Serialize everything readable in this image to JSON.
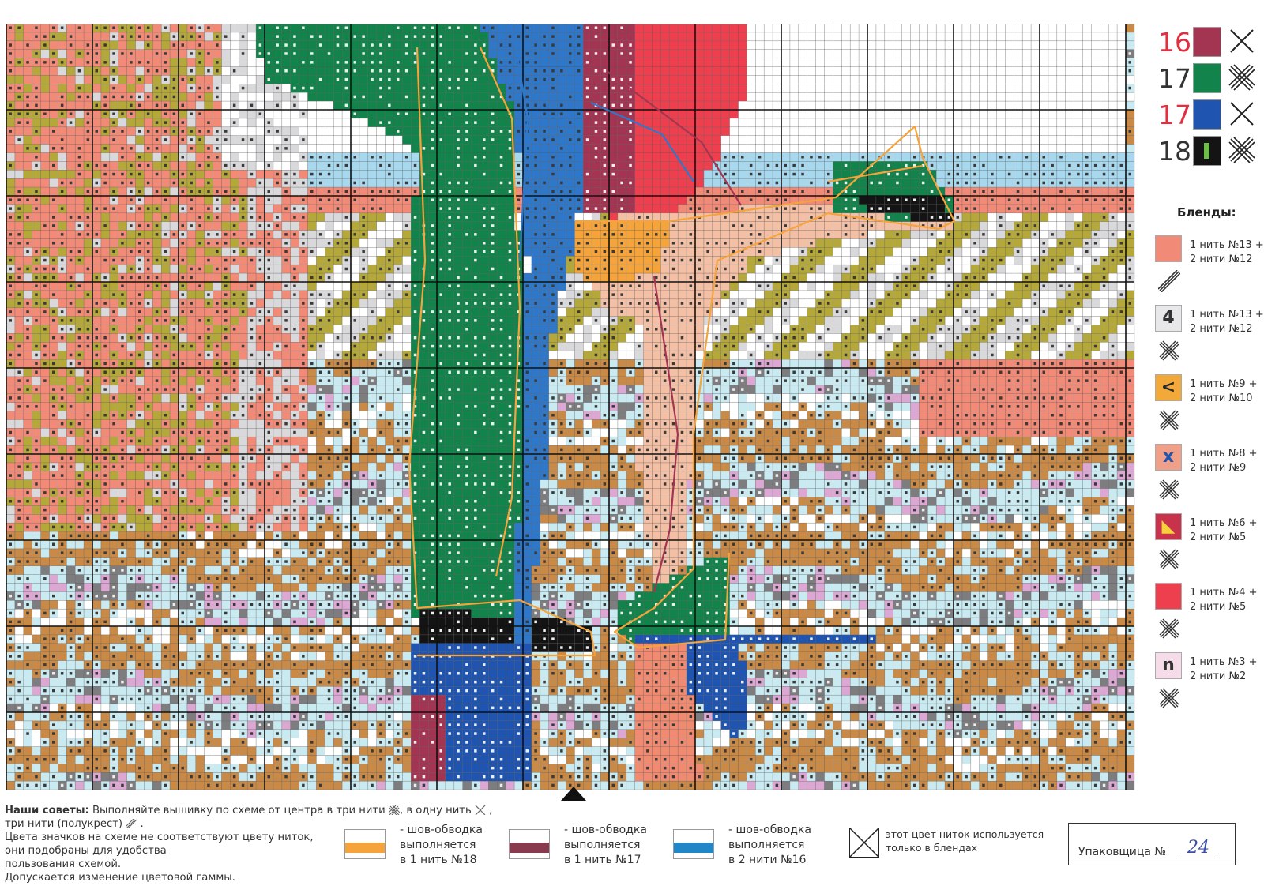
{
  "legend": {
    "items": [
      {
        "number": "16",
        "number_color": "#e03040",
        "swatch": "#a33552",
        "stitch": "x-single",
        "swatch_mark": ""
      },
      {
        "number": "17",
        "number_color": "#333333",
        "swatch": "#12834a",
        "stitch": "x-triple",
        "swatch_mark": ""
      },
      {
        "number": "17",
        "number_color": "#e03040",
        "swatch": "#1f55b0",
        "stitch": "x-single",
        "swatch_mark": ""
      },
      {
        "number": "18",
        "number_color": "#333333",
        "swatch": "#141414",
        "stitch": "x-triple",
        "swatch_mark": "green-bar"
      }
    ]
  },
  "blends": {
    "title": "Бленды:",
    "items": [
      {
        "swatch": "#f28a78",
        "symbol": "",
        "symbol_color": "#333333",
        "line1": "1 нить №13 +",
        "line2": "2 нити №12",
        "stitch": "half"
      },
      {
        "swatch": "#e8e8ea",
        "symbol": "4",
        "symbol_color": "#333333",
        "line1": "1 нить №13 +",
        "line2": "2 нити №12",
        "stitch": "x-triple"
      },
      {
        "swatch": "#f3a93a",
        "symbol": "<",
        "symbol_color": "#2a2a2a",
        "line1": "1 нить №9 +",
        "line2": "2 нити №10",
        "stitch": "x-triple"
      },
      {
        "swatch": "#f0a088",
        "symbol": "x",
        "symbol_color": "#1f55b0",
        "line1": "1 нить №8 +",
        "line2": "2 нити №9",
        "stitch": "x-triple"
      },
      {
        "swatch": "#c8324a",
        "symbol": "◣",
        "symbol_color": "#f5d13a",
        "line1": "1 нить №6 +",
        "line2": "2 нити №5",
        "stitch": "x-triple"
      },
      {
        "swatch": "#ee3f4e",
        "symbol": "",
        "symbol_color": "#333333",
        "line1": "1 нить №4 +",
        "line2": "2 нити №5",
        "stitch": "x-triple"
      },
      {
        "swatch": "#f6dce8",
        "symbol": "n",
        "symbol_color": "#333333",
        "line1": "1 нить №3 +",
        "line2": "2 нити №2",
        "stitch": "x-triple"
      }
    ]
  },
  "advice": {
    "label": "Наши советы:",
    "text1": " Выполняйте вышивку по схеме от центра в три нити",
    "text2": ", в одну нить",
    "text3": ",",
    "text4": "три нити (полукрест)",
    "text5": ".",
    "line2": "Цвета значков на схеме не соответствуют цвету ниток,",
    "line3": "они подобраны для удобства",
    "line4": "пользования схемой.",
    "line5": "Допускается изменение цветовой гаммы."
  },
  "backstitch": [
    {
      "color": "#f5a33b",
      "line1": "- шов-обводка",
      "line2": "выполняется",
      "line3": "в 1 нить №18"
    },
    {
      "color": "#8a3a4e",
      "line1": "- шов-обводка",
      "line2": "выполняется",
      "line3": "в 1 нить №17"
    },
    {
      "color": "#2186c8",
      "line1": "- шов-обводка",
      "line2": "выполняется",
      "line3": "в 2 нити №16"
    }
  ],
  "blend_only_note": {
    "line1": "этот цвет ниток используется",
    "line2": "только в блендах"
  },
  "packer": {
    "label": "Упаковщица №",
    "number": "24"
  },
  "palette": {
    "salmon": "#f28a78",
    "olive": "#b5a83a",
    "lightgray": "#d9d9db",
    "pink": "#f6b1a0",
    "lightblue": "#c9eaf0",
    "skyblue": "#a8d8ee",
    "white": "#ffffff",
    "tan": "#c98a48",
    "gray": "#7d7d80",
    "lilac": "#dca7d2",
    "green": "#12834a",
    "black": "#141414",
    "blue": "#1f55b0",
    "steelblue": "#2f78c9",
    "red": "#ee3f4e",
    "crimson": "#a33552",
    "skin": "#f3bfa5",
    "orange": "#f5a33b",
    "coral": "#f08a70",
    "darkgray": "#555558"
  }
}
